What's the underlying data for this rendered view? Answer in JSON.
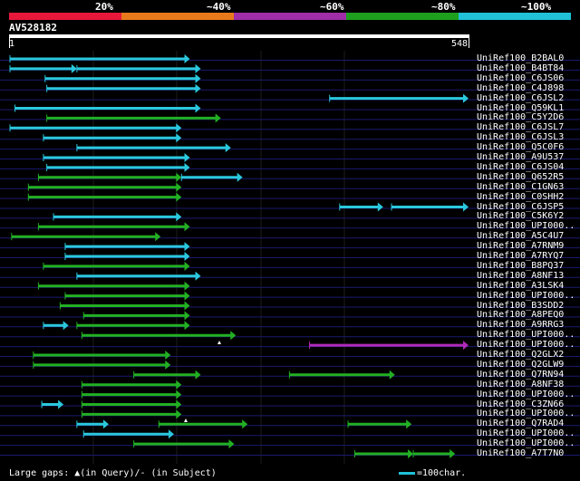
{
  "scale": {
    "segments": [
      {
        "label": "",
        "color": "#e8183a"
      },
      {
        "label": "20%",
        "color": "#e87a1c"
      },
      {
        "label": "~40%",
        "color": "#a02ea8"
      },
      {
        "label": "~60%",
        "color": "#1ea01e"
      },
      {
        "label": "~80%",
        "color": "#20c0d8"
      },
      {
        "label": "~100%",
        "color": ""
      }
    ]
  },
  "query": {
    "title": "AV528182",
    "start": "1",
    "end": "548"
  },
  "colors": {
    "cyan": "#2ac8dc",
    "green": "#22b022",
    "purple": "#b02ab8",
    "row_line": "#1a1a70",
    "grid": "#1c1c1c",
    "gap_marker": "#ffffff"
  },
  "hits": [
    {
      "label": "UniRef100_B2BAL0",
      "segs": [
        [
          0,
          215,
          "cyan"
        ]
      ]
    },
    {
      "label": "UniRef100_B4BT84",
      "segs": [
        [
          0,
          80,
          "cyan"
        ],
        [
          80,
          228,
          "cyan"
        ]
      ]
    },
    {
      "label": "UniRef100_C6JS06",
      "segs": [
        [
          42,
          228,
          "cyan"
        ]
      ]
    },
    {
      "label": "UniRef100_C4J898",
      "segs": [
        [
          44,
          228,
          "cyan"
        ]
      ]
    },
    {
      "label": "UniRef100_C6JSL2",
      "segs": [
        [
          382,
          548,
          "cyan"
        ]
      ]
    },
    {
      "label": "UniRef100_Q59KL1",
      "segs": [
        [
          6,
          228,
          "cyan"
        ]
      ]
    },
    {
      "label": "UniRef100_C5Y2D6",
      "segs": [
        [
          44,
          252,
          "green"
        ]
      ]
    },
    {
      "label": "UniRef100_C6JSL7",
      "segs": [
        [
          0,
          205,
          "cyan"
        ]
      ]
    },
    {
      "label": "UniRef100_C6JSL3",
      "segs": [
        [
          40,
          205,
          "cyan"
        ]
      ]
    },
    {
      "label": "UniRef100_Q5C0F6",
      "segs": [
        [
          80,
          264,
          "cyan"
        ]
      ]
    },
    {
      "label": "UniRef100_A9U537",
      "segs": [
        [
          40,
          215,
          "cyan"
        ]
      ]
    },
    {
      "label": "UniRef100_C6JS04",
      "segs": [
        [
          44,
          215,
          "cyan"
        ]
      ]
    },
    {
      "label": "UniRef100_Q652R5",
      "segs": [
        [
          34,
          205,
          "green"
        ],
        [
          205,
          278,
          "cyan"
        ]
      ]
    },
    {
      "label": "UniRef100_C1GN63",
      "segs": [
        [
          22,
          205,
          "green"
        ]
      ]
    },
    {
      "label": "UniRef100_C0SHH2",
      "segs": [
        [
          22,
          205,
          "green"
        ]
      ]
    },
    {
      "label": "UniRef100_C6JSP5",
      "segs": [
        [
          394,
          446,
          "cyan"
        ],
        [
          456,
          548,
          "cyan"
        ]
      ]
    },
    {
      "label": "UniRef100_C5K6Y2",
      "segs": [
        [
          52,
          205,
          "cyan"
        ]
      ]
    },
    {
      "label": "UniRef100_UPI000..",
      "segs": [
        [
          34,
          215,
          "green"
        ]
      ]
    },
    {
      "label": "UniRef100_A5C4U7",
      "segs": [
        [
          2,
          180,
          "green"
        ]
      ]
    },
    {
      "label": "UniRef100_A7RNM9",
      "segs": [
        [
          66,
          215,
          "cyan"
        ]
      ]
    },
    {
      "label": "UniRef100_A7RYQ7",
      "segs": [
        [
          66,
          215,
          "cyan"
        ]
      ]
    },
    {
      "label": "UniRef100_B8PQ37",
      "segs": [
        [
          40,
          215,
          "green"
        ]
      ]
    },
    {
      "label": "UniRef100_A8NF13",
      "segs": [
        [
          80,
          228,
          "cyan"
        ]
      ]
    },
    {
      "label": "UniRef100_A3LSK4",
      "segs": [
        [
          34,
          215,
          "green"
        ]
      ]
    },
    {
      "label": "UniRef100_UPI000..",
      "segs": [
        [
          66,
          215,
          "green"
        ]
      ]
    },
    {
      "label": "UniRef100_B3SDD2",
      "segs": [
        [
          60,
          215,
          "green"
        ]
      ]
    },
    {
      "label": "UniRef100_A8PEQ0",
      "segs": [
        [
          88,
          215,
          "green"
        ]
      ]
    },
    {
      "label": "UniRef100_A9RRG3",
      "segs": [
        [
          40,
          70,
          "cyan"
        ],
        [
          80,
          215,
          "green"
        ]
      ]
    },
    {
      "label": "UniRef100_UPI000..",
      "segs": [
        [
          86,
          270,
          "green"
        ]
      ]
    },
    {
      "label": "UniRef100_UPI000..",
      "segs": [
        [
          358,
          548,
          "purple"
        ]
      ]
    },
    {
      "label": "UniRef100_Q2GLX2",
      "segs": [
        [
          28,
          192,
          "green"
        ]
      ]
    },
    {
      "label": "UniRef100_Q2GLW9",
      "segs": [
        [
          28,
          192,
          "green"
        ]
      ]
    },
    {
      "label": "UniRef100_Q7RN94",
      "segs": [
        [
          148,
          228,
          "green"
        ],
        [
          334,
          460,
          "green"
        ]
      ]
    },
    {
      "label": "UniRef100_A8NF38",
      "segs": [
        [
          86,
          205,
          "green"
        ]
      ]
    },
    {
      "label": "UniRef100_UPI000..",
      "segs": [
        [
          86,
          205,
          "green"
        ]
      ]
    },
    {
      "label": "UniRef100_C3ZN66",
      "segs": [
        [
          38,
          64,
          "cyan"
        ],
        [
          86,
          205,
          "green"
        ]
      ]
    },
    {
      "label": "UniRef100_UPI000..",
      "segs": [
        [
          86,
          205,
          "green"
        ]
      ]
    },
    {
      "label": "UniRef100_Q7RAD4",
      "segs": [
        [
          80,
          118,
          "cyan"
        ],
        [
          178,
          284,
          "green"
        ],
        [
          404,
          480,
          "green"
        ]
      ]
    },
    {
      "label": "UniRef100_UPI000..",
      "segs": [
        [
          88,
          196,
          "cyan"
        ]
      ]
    },
    {
      "label": "UniRef100_UPI000..",
      "segs": [
        [
          148,
          268,
          "green"
        ]
      ]
    },
    {
      "label": "UniRef100_A7T7N0",
      "segs": [
        [
          412,
          482,
          "green"
        ],
        [
          482,
          532,
          "green"
        ]
      ]
    }
  ],
  "legend": {
    "left": "Large gaps: ▲(in Query)/- (in Subject)",
    "right": "=100char."
  }
}
